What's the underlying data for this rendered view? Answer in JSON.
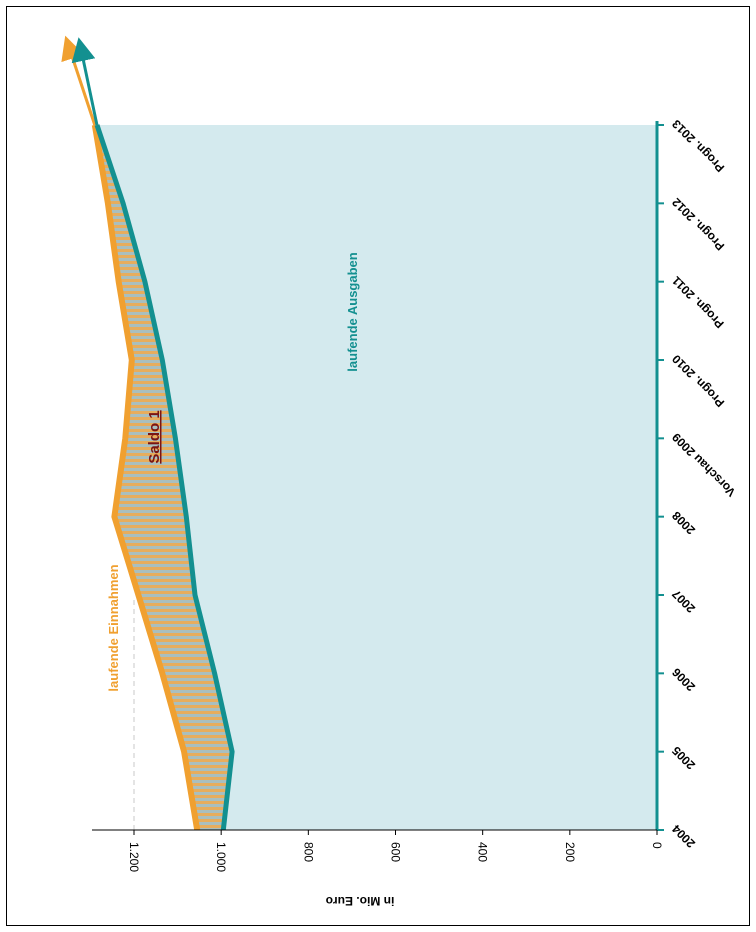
{
  "chart_data": {
    "type": "area",
    "orientation": "rotated-90-clockwise",
    "ylabel": "in Mio. Euro",
    "ylim": [
      0,
      1300
    ],
    "yticks": [
      0,
      200,
      400,
      600,
      800,
      1000,
      1200
    ],
    "ytick_labels": [
      "0",
      "200",
      "400",
      "600",
      "800",
      "1.000",
      "1.200"
    ],
    "categories": [
      "2004",
      "2005",
      "2006",
      "2007",
      "2008",
      "Vorschau 2009",
      "Progn. 2010",
      "Progn. 2011",
      "Progn. 2012",
      "Progn. 2013"
    ],
    "series": [
      {
        "name": "laufende Einnahmen",
        "color": "#f0a030",
        "values": [
          1055,
          1085,
          1135,
          1190,
          1245,
          1220,
          1205,
          1235,
          1260,
          1290
        ]
      },
      {
        "name": "laufende Ausgaben",
        "color": "#139090",
        "values": [
          995,
          975,
          1015,
          1060,
          1080,
          1105,
          1135,
          1175,
          1225,
          1285
        ]
      }
    ],
    "annotations": [
      {
        "text": "Saldo 1",
        "color": "#7a1414"
      }
    ],
    "area_fill_color": "#d4eaee",
    "grid": false
  }
}
